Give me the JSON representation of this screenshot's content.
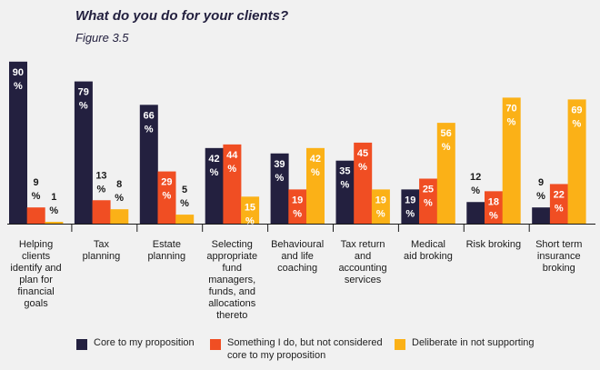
{
  "chart_data": {
    "type": "bar",
    "title": "What do you do for your clients?",
    "subtitle": "Figure 3.5",
    "categories": [
      "Helping clients identify and plan for financial goals",
      "Tax planning",
      "Estate planning",
      "Selecting appropriate fund managers, funds, and allocations thereto",
      "Behavioural and life coaching",
      "Tax return and accounting services",
      "Medical aid broking",
      "Risk broking",
      "Short term insurance broking"
    ],
    "category_lines": [
      [
        "Helping",
        "clients",
        "identify and",
        "plan for",
        "financial",
        "goals"
      ],
      [
        "Tax",
        "planning"
      ],
      [
        "Estate",
        "planning"
      ],
      [
        "Selecting",
        "appropriate",
        "fund",
        "managers,",
        "funds, and",
        "allocations",
        "thereto"
      ],
      [
        "Behavioural",
        "and life",
        "coaching"
      ],
      [
        "Tax return",
        "and",
        "accounting",
        "services"
      ],
      [
        "Medical",
        "aid broking"
      ],
      [
        "Risk broking"
      ],
      [
        "Short term",
        "insurance",
        "broking"
      ]
    ],
    "series": [
      {
        "name": "Core to my proposition",
        "color": "#23203f",
        "values": [
          90,
          79,
          66,
          42,
          39,
          35,
          19,
          12,
          9
        ]
      },
      {
        "name": "Something I do, but not considered core to my proposition",
        "color": "#f04e23",
        "values": [
          9,
          13,
          29,
          44,
          19,
          45,
          25,
          18,
          22
        ]
      },
      {
        "name": "Deliberate in not supporting",
        "color": "#fbb117",
        "values": [
          1,
          8,
          5,
          15,
          42,
          19,
          56,
          70,
          69
        ]
      }
    ],
    "legend_lines": [
      [
        "Core to my proposition"
      ],
      [
        "Something I do, but not considered",
        "core to my proposition"
      ],
      [
        "Deliberate in not supporting"
      ]
    ],
    "value_suffix": "%",
    "ylim": [
      0,
      100
    ],
    "grid": false,
    "legend_position": "bottom"
  }
}
